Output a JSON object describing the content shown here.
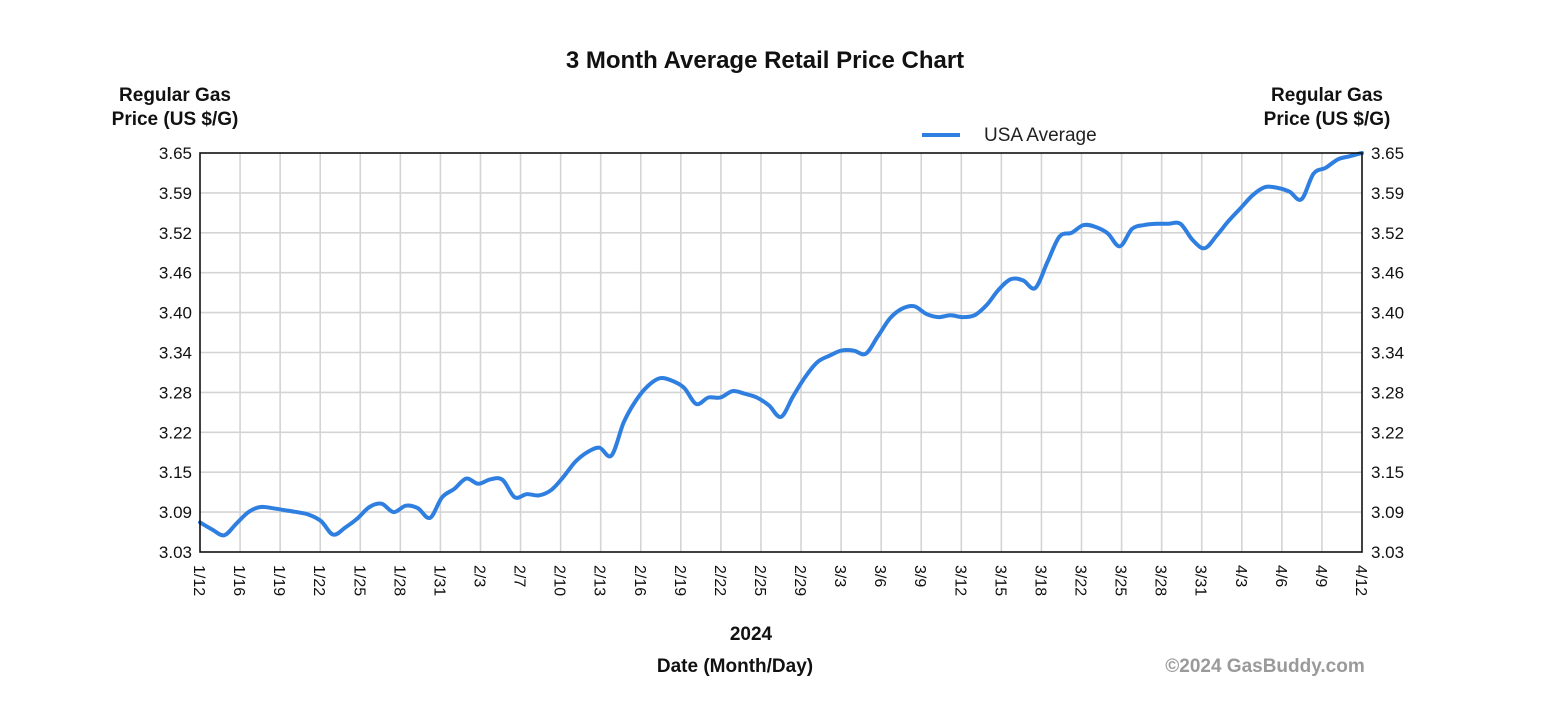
{
  "chart_data": {
    "type": "line",
    "title": "3 Month Average Retail Price Chart",
    "ylabel_left": [
      "Regular Gas",
      "Price (US $/G)"
    ],
    "ylabel_right": [
      "Regular Gas",
      "Price (US $/G)"
    ],
    "xlabel_year": "2024",
    "xlabel": "Date (Month/Day)",
    "credit": "©2024 GasBuddy.com",
    "ylim": [
      3.03,
      3.65
    ],
    "yticks": [
      "3.65",
      "3.59",
      "3.52",
      "3.46",
      "3.40",
      "3.34",
      "3.28",
      "3.22",
      "3.15",
      "3.09",
      "3.03"
    ],
    "xticks": [
      "1/12",
      "1/16",
      "1/19",
      "1/22",
      "1/25",
      "1/28",
      "1/31",
      "2/3",
      "2/7",
      "2/10",
      "2/13",
      "2/16",
      "2/19",
      "2/22",
      "2/25",
      "2/29",
      "3/3",
      "3/6",
      "3/9",
      "3/12",
      "3/15",
      "3/18",
      "3/22",
      "3/25",
      "3/28",
      "3/31",
      "4/3",
      "4/6",
      "4/9",
      "4/12"
    ],
    "grid": true,
    "legend_position": "top-right",
    "series": [
      {
        "name": "USA Average",
        "color": "#2f7fe0",
        "values": [
          3.076,
          3.065,
          3.056,
          3.074,
          3.092,
          3.1,
          3.098,
          3.095,
          3.092,
          3.088,
          3.078,
          3.057,
          3.068,
          3.082,
          3.1,
          3.105,
          3.092,
          3.102,
          3.098,
          3.083,
          3.115,
          3.128,
          3.144,
          3.136,
          3.143,
          3.142,
          3.115,
          3.12,
          3.118,
          3.126,
          3.146,
          3.17,
          3.185,
          3.192,
          3.18,
          3.231,
          3.265,
          3.288,
          3.3,
          3.296,
          3.285,
          3.26,
          3.27,
          3.27,
          3.28,
          3.276,
          3.27,
          3.258,
          3.24,
          3.272,
          3.302,
          3.325,
          3.335,
          3.343,
          3.343,
          3.338,
          3.365,
          3.393,
          3.408,
          3.412,
          3.4,
          3.395,
          3.398,
          3.395,
          3.398,
          3.414,
          3.438,
          3.454,
          3.452,
          3.44,
          3.48,
          3.52,
          3.526,
          3.538,
          3.535,
          3.525,
          3.505,
          3.532,
          3.538,
          3.54,
          3.54,
          3.54,
          3.515,
          3.502,
          3.522,
          3.545,
          3.565,
          3.585,
          3.597,
          3.596,
          3.59,
          3.578,
          3.618,
          3.627,
          3.64,
          3.645,
          3.65
        ]
      }
    ]
  }
}
